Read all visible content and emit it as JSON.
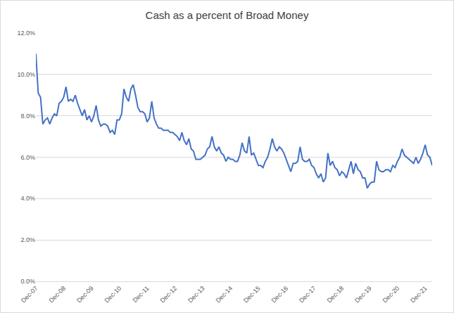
{
  "chart_data": {
    "type": "line",
    "title": "Cash as a percent of Broad Money",
    "categories": [
      "Dec-07",
      null,
      null,
      null,
      null,
      null,
      null,
      null,
      null,
      null,
      null,
      null,
      "Dec-08",
      null,
      null,
      null,
      null,
      null,
      null,
      null,
      null,
      null,
      null,
      null,
      "Dec-09",
      null,
      null,
      null,
      null,
      null,
      null,
      null,
      null,
      null,
      null,
      null,
      "Dec-10",
      null,
      null,
      null,
      null,
      null,
      null,
      null,
      null,
      null,
      null,
      null,
      "Dec-11",
      null,
      null,
      null,
      null,
      null,
      null,
      null,
      null,
      null,
      null,
      null,
      "Dec-12",
      null,
      null,
      null,
      null,
      null,
      null,
      null,
      null,
      null,
      null,
      null,
      "Dec-13",
      null,
      null,
      null,
      null,
      null,
      null,
      null,
      null,
      null,
      null,
      null,
      "Dec-14",
      null,
      null,
      null,
      null,
      null,
      null,
      null,
      null,
      null,
      null,
      null,
      "Dec-15",
      null,
      null,
      null,
      null,
      null,
      null,
      null,
      null,
      null,
      null,
      null,
      "Dec-16",
      null,
      null,
      null,
      null,
      null,
      null,
      null,
      null,
      null,
      null,
      null,
      "Dec-17",
      null,
      null,
      null,
      null,
      null,
      null,
      null,
      null,
      null,
      null,
      null,
      "Dec-18",
      null,
      null,
      null,
      null,
      null,
      null,
      null,
      null,
      null,
      null,
      null,
      "Dec-19",
      null,
      null,
      null,
      null,
      null,
      null,
      null,
      null,
      null,
      null,
      null,
      "Dec-20",
      null,
      null,
      null,
      null,
      null,
      null,
      null,
      null,
      null,
      null,
      null,
      "Dec-21",
      null,
      null,
      null
    ],
    "values": [
      11.0,
      9.1,
      8.9,
      7.6,
      7.8,
      7.9,
      7.6,
      7.9,
      8.1,
      8.0,
      8.6,
      8.7,
      8.9,
      9.4,
      8.7,
      8.8,
      8.7,
      9.0,
      8.6,
      8.3,
      8.0,
      8.3,
      7.8,
      8.0,
      7.7,
      8.0,
      8.5,
      7.8,
      7.5,
      7.6,
      7.6,
      7.5,
      7.2,
      7.3,
      7.1,
      7.8,
      7.8,
      8.1,
      9.3,
      8.9,
      8.7,
      9.3,
      9.5,
      9.0,
      8.4,
      8.2,
      8.2,
      8.1,
      7.7,
      7.9,
      8.7,
      7.9,
      7.6,
      7.4,
      7.4,
      7.3,
      7.3,
      7.3,
      7.2,
      7.2,
      7.1,
      7.0,
      6.8,
      7.2,
      6.8,
      6.6,
      6.9,
      6.4,
      6.3,
      5.9,
      5.9,
      5.9,
      6.0,
      6.1,
      6.4,
      6.5,
      7.0,
      6.5,
      6.3,
      6.5,
      6.2,
      6.1,
      5.8,
      6.0,
      5.9,
      5.9,
      5.8,
      5.8,
      6.1,
      6.7,
      6.3,
      6.2,
      7.0,
      6.1,
      6.2,
      5.9,
      5.6,
      5.6,
      5.5,
      5.8,
      6.0,
      6.4,
      6.9,
      6.5,
      6.3,
      6.5,
      6.4,
      6.2,
      5.9,
      5.6,
      5.3,
      5.7,
      5.7,
      5.8,
      6.5,
      5.9,
      5.8,
      5.8,
      5.9,
      5.6,
      5.5,
      5.2,
      5.0,
      5.2,
      4.8,
      5.0,
      6.2,
      5.6,
      5.8,
      5.5,
      5.4,
      5.1,
      5.3,
      5.2,
      5.0,
      5.4,
      5.8,
      5.2,
      5.7,
      5.4,
      5.3,
      5.0,
      5.0,
      4.5,
      4.7,
      4.8,
      4.8,
      5.8,
      5.4,
      5.3,
      5.3,
      5.4,
      5.4,
      5.3,
      5.6,
      5.5,
      5.8,
      6.0,
      6.4,
      6.1,
      6.0,
      5.9,
      5.8,
      5.7,
      6.0,
      5.7,
      5.9,
      6.2,
      6.6,
      6.1,
      6.0,
      5.6
    ],
    "color": "#4472c4",
    "ylim": [
      0,
      12
    ],
    "yticks": [
      {
        "value": 0,
        "label": "0.0%"
      },
      {
        "value": 2,
        "label": "2.0%"
      },
      {
        "value": 4,
        "label": "4.0%"
      },
      {
        "value": 6,
        "label": "6.0%"
      },
      {
        "value": 8,
        "label": "8.0%"
      },
      {
        "value": 10,
        "label": "10.0%"
      },
      {
        "value": 12,
        "label": "12.0%"
      }
    ],
    "grid": true
  }
}
